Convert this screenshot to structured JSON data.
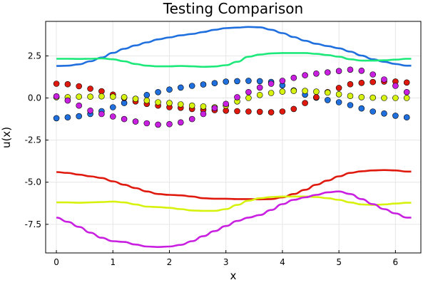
{
  "chart_data": {
    "type": "line",
    "title": "Testing Comparison",
    "xlabel": "x",
    "ylabel": "u(x)",
    "xlim": [
      -0.19,
      6.45
    ],
    "ylim": [
      -9.2,
      4.55
    ],
    "xticks": [
      0,
      1,
      2,
      3,
      4,
      5,
      6
    ],
    "yticks": [
      2.5,
      0.0,
      -2.5,
      -5.0,
      -7.5
    ],
    "ytick_labels": [
      "2.5",
      "0.0",
      "-2.5",
      "-5.0",
      "-7.5"
    ],
    "grid": true,
    "legend": "none",
    "x": [
      0.0,
      0.2,
      0.4,
      0.6,
      0.8,
      1.0,
      1.2,
      1.4,
      1.6,
      1.8,
      2.0,
      2.2,
      2.4,
      2.6,
      2.8,
      3.0,
      3.2,
      3.4,
      3.6,
      3.8,
      4.0,
      4.2,
      4.4,
      4.6,
      4.8,
      5.0,
      5.2,
      5.4,
      5.6,
      5.8,
      6.0,
      6.2
    ],
    "lines": [
      {
        "color": "#1f6fde",
        "values": [
          1.9,
          1.92,
          2.0,
          2.18,
          2.4,
          2.68,
          2.92,
          3.12,
          3.3,
          3.48,
          3.6,
          3.72,
          3.8,
          3.92,
          4.05,
          4.15,
          4.18,
          4.22,
          4.2,
          4.05,
          3.85,
          3.62,
          3.4,
          3.22,
          3.08,
          2.95,
          2.75,
          2.52,
          2.3,
          2.15,
          2.02,
          1.92
        ]
      },
      {
        "color": "#1de87a",
        "values": [
          2.33,
          2.33,
          2.32,
          2.33,
          2.35,
          2.3,
          2.18,
          2.02,
          1.92,
          1.88,
          1.88,
          1.9,
          1.88,
          1.85,
          1.87,
          1.95,
          2.15,
          2.45,
          2.58,
          2.65,
          2.67,
          2.67,
          2.67,
          2.62,
          2.55,
          2.45,
          2.3,
          2.22,
          2.22,
          2.24,
          2.28,
          2.33
        ]
      },
      {
        "color": "#e0190e",
        "values": [
          -4.4,
          -4.45,
          -4.55,
          -4.65,
          -4.75,
          -4.95,
          -5.15,
          -5.35,
          -5.55,
          -5.7,
          -5.75,
          -5.78,
          -5.85,
          -5.95,
          -5.98,
          -5.98,
          -6.0,
          -6.0,
          -6.02,
          -6.0,
          -5.9,
          -5.7,
          -5.45,
          -5.15,
          -4.9,
          -4.65,
          -4.45,
          -4.35,
          -4.3,
          -4.28,
          -4.3,
          -4.37
        ]
      },
      {
        "color": "#d6f20e",
        "values": [
          -6.2,
          -6.2,
          -6.22,
          -6.2,
          -6.18,
          -6.15,
          -6.2,
          -6.32,
          -6.45,
          -6.48,
          -6.52,
          -6.6,
          -6.68,
          -6.7,
          -6.7,
          -6.6,
          -6.35,
          -6.1,
          -5.95,
          -5.88,
          -5.85,
          -5.85,
          -5.85,
          -5.88,
          -5.95,
          -6.05,
          -6.2,
          -6.32,
          -6.35,
          -6.32,
          -6.27,
          -6.22
        ]
      },
      {
        "color": "#c81fe0",
        "values": [
          -7.1,
          -7.35,
          -7.65,
          -8.0,
          -8.3,
          -8.5,
          -8.55,
          -8.7,
          -8.82,
          -8.85,
          -8.82,
          -8.72,
          -8.5,
          -8.2,
          -7.9,
          -7.6,
          -7.3,
          -7.1,
          -6.95,
          -6.65,
          -6.3,
          -6.05,
          -5.9,
          -5.75,
          -5.6,
          -5.55,
          -5.7,
          -6.0,
          -6.3,
          -6.6,
          -6.85,
          -7.1
        ]
      }
    ],
    "scatter": [
      {
        "color": "#1f6fde",
        "values": [
          -1.2,
          -1.15,
          -1.08,
          -0.95,
          -0.78,
          -0.55,
          -0.3,
          -0.05,
          0.18,
          0.35,
          0.5,
          0.62,
          0.72,
          0.8,
          0.88,
          0.97,
          1.0,
          1.02,
          1.0,
          0.95,
          0.75,
          0.45,
          0.2,
          0.02,
          -0.12,
          -0.25,
          -0.42,
          -0.62,
          -0.8,
          -0.92,
          -1.05,
          -1.15
        ]
      },
      {
        "color": "#e0190e",
        "values": [
          0.85,
          0.82,
          0.7,
          0.55,
          0.4,
          0.2,
          0.0,
          -0.2,
          -0.35,
          -0.45,
          -0.55,
          -0.58,
          -0.65,
          -0.7,
          -0.72,
          -0.75,
          -0.78,
          -0.8,
          -0.82,
          -0.85,
          -0.8,
          -0.65,
          -0.3,
          0.05,
          0.35,
          0.6,
          0.82,
          0.9,
          0.95,
          0.98,
          0.98,
          0.92
        ]
      },
      {
        "color": "#d6f20e",
        "values": [
          0.05,
          0.05,
          0.08,
          0.08,
          0.1,
          0.08,
          0.05,
          -0.05,
          -0.15,
          -0.25,
          -0.3,
          -0.38,
          -0.45,
          -0.5,
          -0.55,
          -0.45,
          -0.2,
          0.0,
          0.18,
          0.3,
          0.38,
          0.42,
          0.42,
          0.38,
          0.32,
          0.22,
          0.12,
          0.05,
          0.02,
          0.0,
          0.0,
          0.0
        ]
      },
      {
        "color": "#c81fe0",
        "values": [
          0.1,
          -0.15,
          -0.45,
          -0.75,
          -0.95,
          -1.1,
          -1.25,
          -1.4,
          -1.5,
          -1.58,
          -1.55,
          -1.45,
          -1.25,
          -0.95,
          -0.6,
          -0.35,
          0.05,
          0.35,
          0.62,
          0.85,
          1.02,
          1.2,
          1.35,
          1.45,
          1.52,
          1.6,
          1.68,
          1.62,
          1.4,
          1.1,
          0.72,
          0.35
        ]
      }
    ]
  }
}
